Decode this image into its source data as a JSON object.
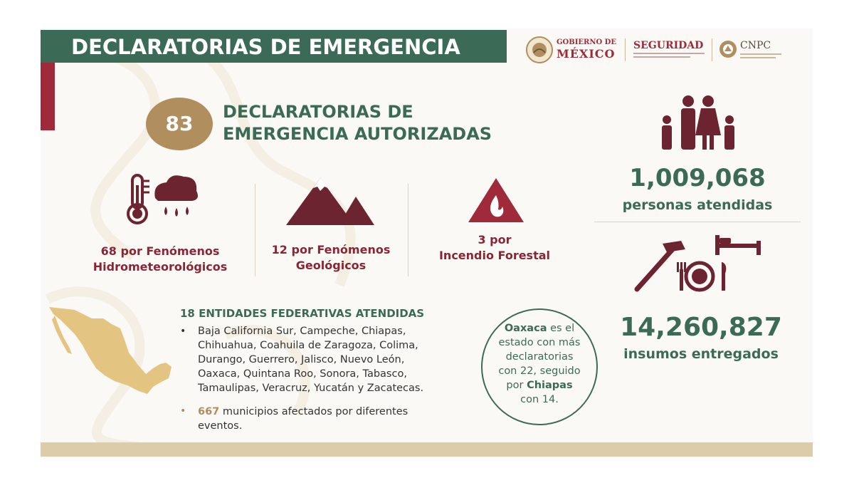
{
  "header": {
    "title": "DECLARATORIAS DE EMERGENCIA",
    "logos": {
      "gobierno_line1": "GOBIERNO DE",
      "gobierno_line2": "MÉXICO",
      "seguridad": "SEGURIDAD",
      "cnpc": "CNPC"
    }
  },
  "summary": {
    "count": "83",
    "title_line1": "DECLARATORIAS DE",
    "title_line2": "EMERGENCIA AUTORIZADAS"
  },
  "categories": [
    {
      "icon": "rain-thermometer-icon",
      "line1": "68 por Fenómenos",
      "line2": "Hidrometeorológicos"
    },
    {
      "icon": "mountain-icon",
      "line1": "12 por Fenómenos",
      "line2": "Geológicos"
    },
    {
      "icon": "fire-warning-icon",
      "line1": "3 por",
      "line2": "Incendio Forestal"
    }
  ],
  "people": {
    "icon": "family-icon",
    "value": "1,009,068",
    "label": "personas atendidas"
  },
  "supplies": {
    "icon": "supplies-icon",
    "value": "14,260,827",
    "label": "insumos entregados"
  },
  "entities": {
    "title": "18 ENTIDADES FEDERATIVAS ATENDIDAS",
    "bullet": "•",
    "states_lines": [
      "Baja California Sur, Campeche, Chiapas,",
      "Chihuahua, Coahuila de Zaragoza, Colima,",
      "Durango, Guerrero, Jalisco, Nuevo León,",
      "Oaxaca, Quintana Roo, Sonora, Tabasco,",
      "Tamaulipas, Veracruz, Yucatán y Zacatecas."
    ],
    "municipios_number": "667",
    "municipios_text_line1": " municipios afectados por diferentes",
    "municipios_text_line2": "eventos."
  },
  "highlight": {
    "line1_bold": "Oaxaca",
    "line1_rest": " es el",
    "line2": "estado con más",
    "line3": "declaratorias",
    "line4": "con 22, seguido",
    "line5_pre": "por ",
    "line5_bold": "Chiapas",
    "line6": "con 14."
  },
  "colors": {
    "green": "#3b6b57",
    "maroon": "#9e2a3a",
    "icon_maroon": "#6b2430",
    "gold": "#b08e5e",
    "map_gold": "#e3c480"
  }
}
